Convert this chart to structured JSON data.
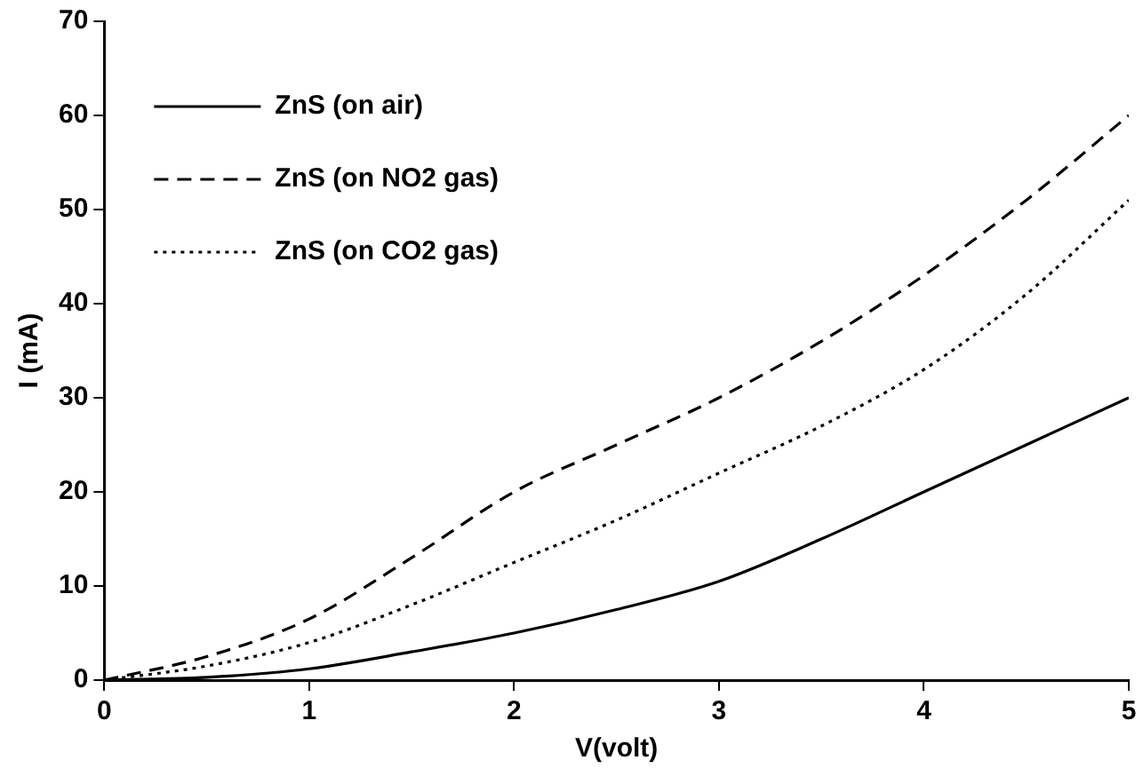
{
  "chart_data": {
    "type": "line",
    "xlabel": "V(volt)",
    "ylabel": "I (mA)",
    "xlim": [
      0,
      5
    ],
    "xticks": [
      0,
      1,
      2,
      3,
      4,
      5
    ],
    "ylim": [
      0,
      70
    ],
    "yticks": [
      0,
      10,
      20,
      30,
      40,
      50,
      60,
      70
    ],
    "grid": false,
    "legend": "top left",
    "marker": "none",
    "x": [
      0,
      0.5,
      1,
      1.5,
      2,
      2.5,
      3,
      3.5,
      4,
      4.5,
      5
    ],
    "series": [
      {
        "name": "ZnS (on air)",
        "color": "#000000",
        "line_style": "solid",
        "values": [
          0,
          0.3,
          1.2,
          3,
          5,
          7.5,
          10.5,
          15,
          20,
          25,
          30
        ]
      },
      {
        "name": "ZnS (on NO2 gas)",
        "color": "#000000",
        "line_style": "dashed",
        "values": [
          0,
          2.5,
          6.5,
          13,
          20,
          25,
          30,
          36,
          43,
          51,
          60
        ]
      },
      {
        "name": "ZnS (on CO2 gas)",
        "color": "#000000",
        "line_style": "dotted",
        "values": [
          0,
          1.5,
          4,
          8,
          12.5,
          17,
          22,
          27,
          33,
          41,
          51
        ]
      }
    ]
  }
}
